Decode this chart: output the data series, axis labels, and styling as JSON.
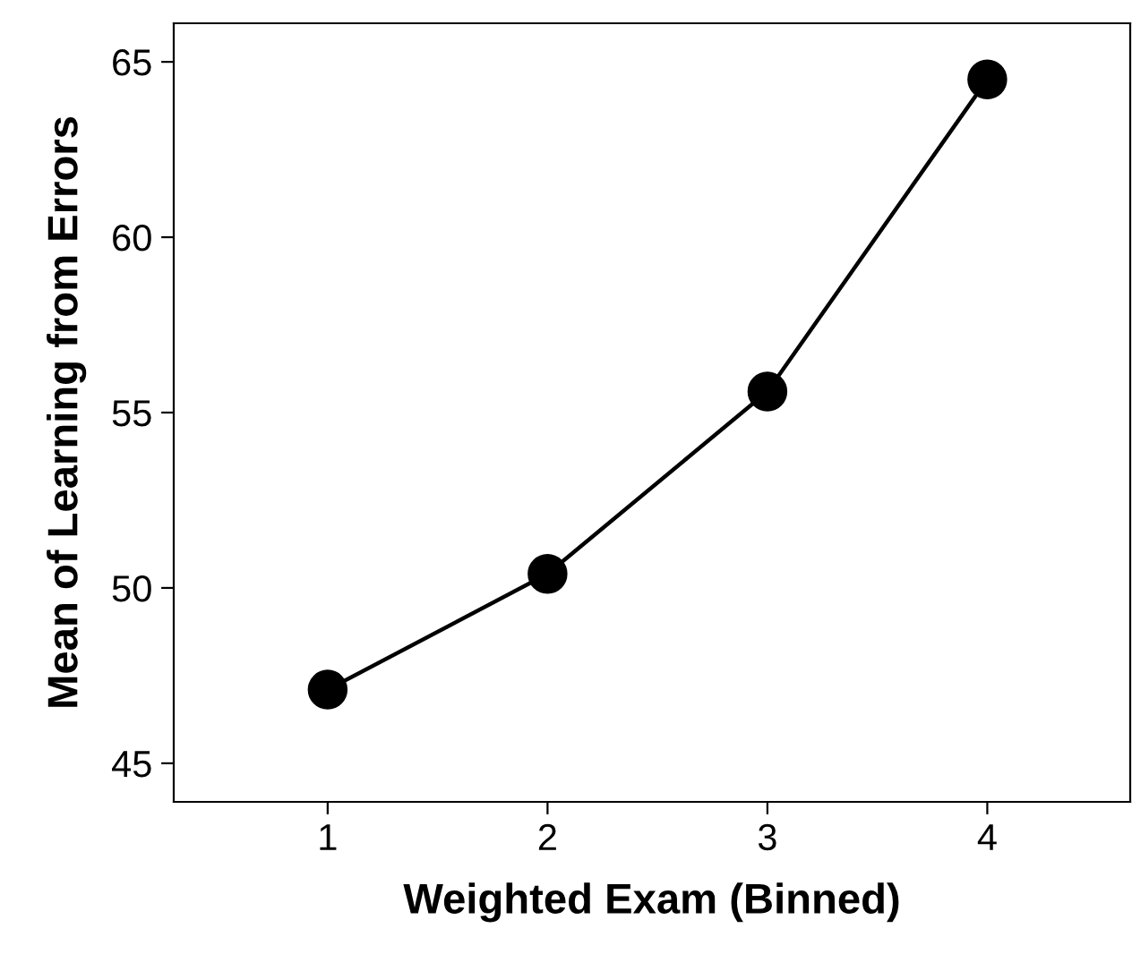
{
  "chart_data": {
    "type": "line",
    "xlabel": "Weighted Exam (Binned)",
    "ylabel": "Mean of Learning from Errors",
    "x": [
      1,
      2,
      3,
      4
    ],
    "series": [
      {
        "color": "#000000",
        "values": [
          47.1,
          50.4,
          55.6,
          64.5
        ]
      }
    ],
    "xlim": [
      0.3,
      4.65
    ],
    "xticks": [
      1,
      2,
      3,
      4
    ],
    "ylim": [
      43.9,
      66.1
    ],
    "yticks": [
      45,
      50,
      55,
      60,
      65
    ],
    "marker": "circle",
    "line_style": "solid",
    "grid": false,
    "legend": false
  }
}
